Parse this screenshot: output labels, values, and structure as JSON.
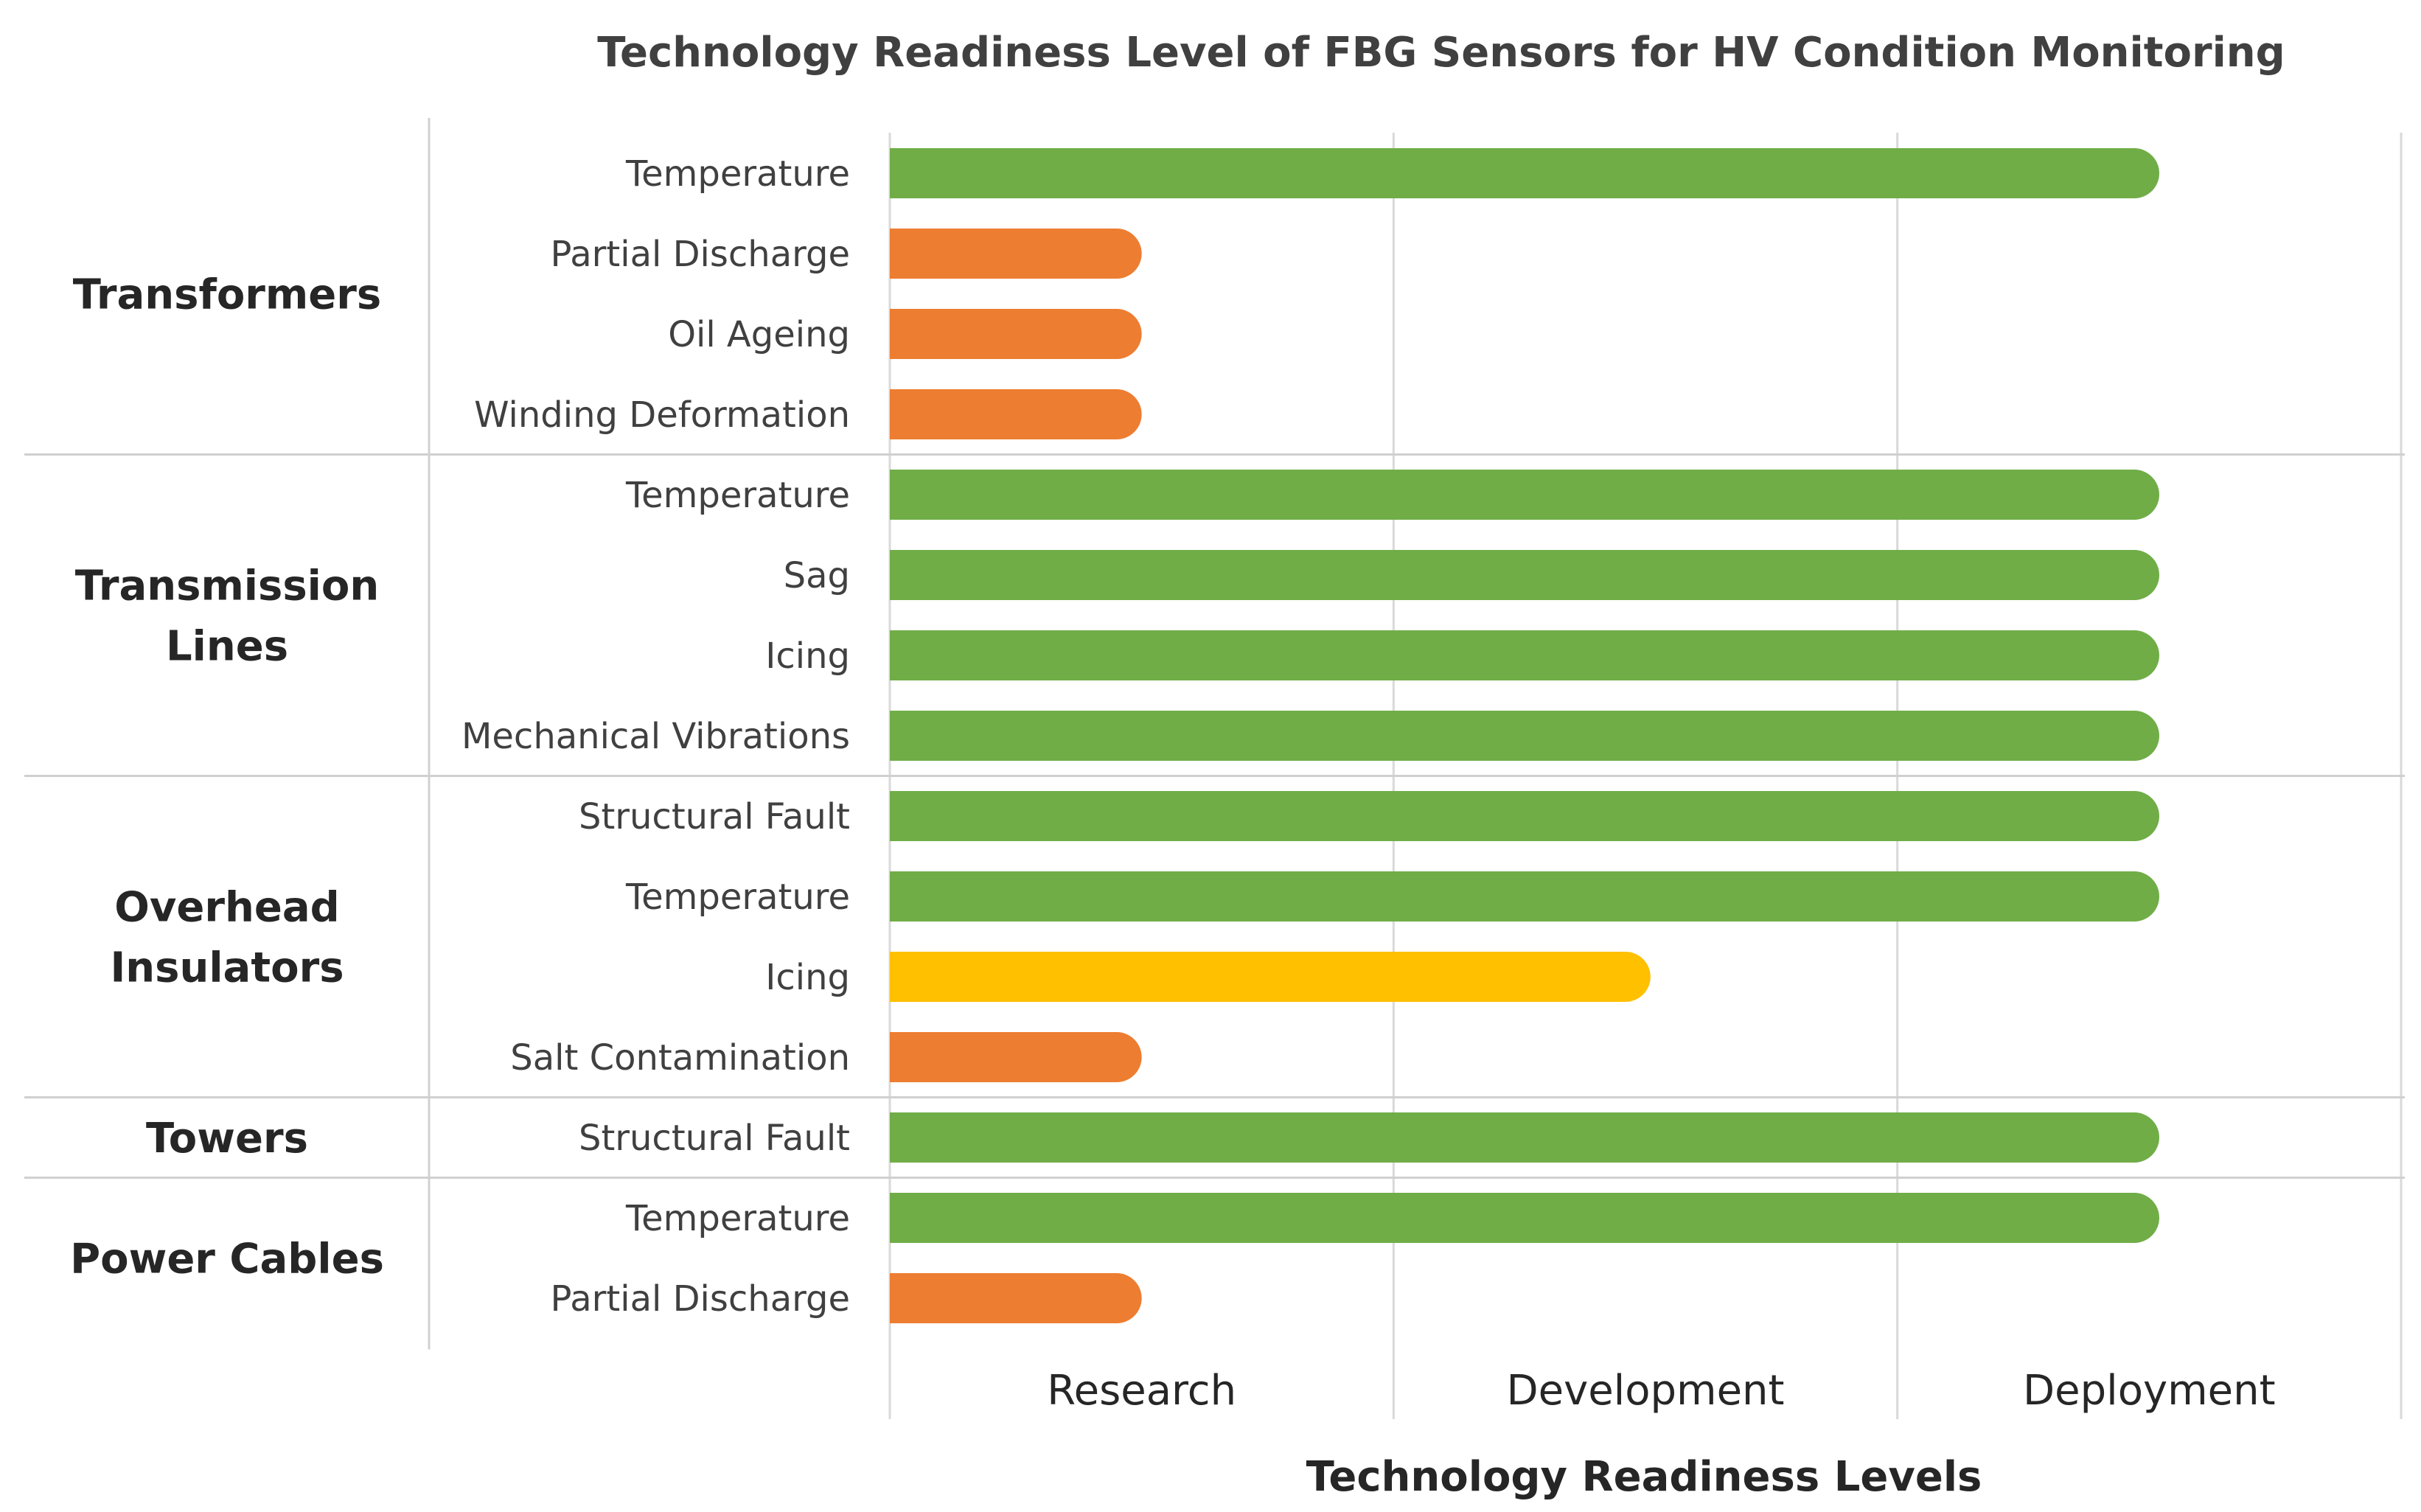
{
  "chart_data": {
    "type": "bar",
    "orientation": "horizontal",
    "title": "Technology Readiness Level of FBG Sensors for HV Condition Monitoring",
    "xlabel": "Technology Readiness Levels",
    "ylabel": "",
    "levels": [
      "Research",
      "Development",
      "Deployment"
    ],
    "xlim": [
      0,
      3
    ],
    "grid": true,
    "colors": {
      "research": "#ED7D31",
      "development": "#FFC000",
      "deployment": "#70AD47"
    },
    "groups": [
      {
        "name": "Transformers",
        "lines": [
          "Transformers"
        ],
        "items": [
          {
            "label": "Temperature",
            "value": 2.52,
            "stage": "deployment"
          },
          {
            "label": "Partial Discharge",
            "value": 0.5,
            "stage": "research"
          },
          {
            "label": "Oil Ageing",
            "value": 0.5,
            "stage": "research"
          },
          {
            "label": "Winding Deformation",
            "value": 0.5,
            "stage": "research"
          }
        ]
      },
      {
        "name": "Transmission Lines",
        "lines": [
          "Transmission",
          "Lines"
        ],
        "items": [
          {
            "label": "Temperature",
            "value": 2.52,
            "stage": "deployment"
          },
          {
            "label": "Sag",
            "value": 2.52,
            "stage": "deployment"
          },
          {
            "label": "Icing",
            "value": 2.52,
            "stage": "deployment"
          },
          {
            "label": "Mechanical Vibrations",
            "value": 2.52,
            "stage": "deployment"
          }
        ]
      },
      {
        "name": "Overhead Insulators",
        "lines": [
          "Overhead",
          "Insulators"
        ],
        "items": [
          {
            "label": "Structural Fault",
            "value": 2.52,
            "stage": "deployment"
          },
          {
            "label": "Temperature",
            "value": 2.52,
            "stage": "deployment"
          },
          {
            "label": "Icing",
            "value": 1.51,
            "stage": "development"
          },
          {
            "label": "Salt Contamination",
            "value": 0.5,
            "stage": "research"
          }
        ]
      },
      {
        "name": "Towers",
        "lines": [
          "Towers"
        ],
        "items": [
          {
            "label": "Structural Fault",
            "value": 2.52,
            "stage": "deployment"
          }
        ]
      },
      {
        "name": "Power Cables",
        "lines": [
          "Power Cables"
        ],
        "items": [
          {
            "label": "Temperature",
            "value": 2.52,
            "stage": "deployment"
          },
          {
            "label": "Partial Discharge",
            "value": 0.5,
            "stage": "research"
          }
        ]
      }
    ]
  }
}
